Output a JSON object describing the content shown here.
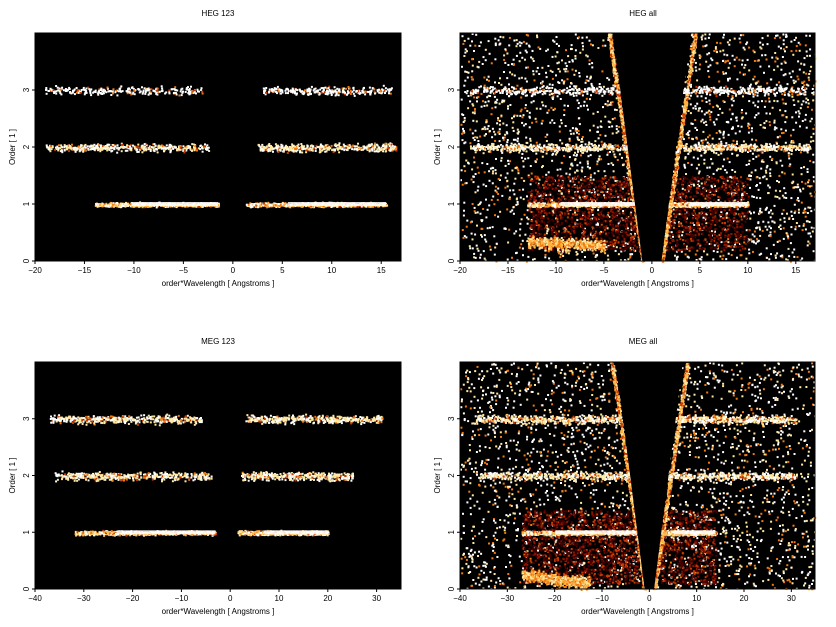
{
  "figure": {
    "background": "#ffffff",
    "panel_bg": "#000000"
  },
  "colormap": [
    "#4a0000",
    "#8a1500",
    "#c83a00",
    "#f07a10",
    "#ffb340",
    "#ffe8a0",
    "#ffffff"
  ],
  "chart_data": [
    {
      "type": "heatmap",
      "title": "HEG 123",
      "xlabel": "order*Wavelength [ Angstroms ]",
      "ylabel": "Order [ 1 ]",
      "xlim": [
        -20,
        17
      ],
      "ylim": [
        0,
        4
      ],
      "xticks": [
        -20,
        -15,
        -10,
        -5,
        0,
        5,
        10,
        15
      ],
      "yticks": [
        0,
        1,
        2,
        3
      ],
      "grid": false,
      "bands": [
        {
          "order": 1,
          "x_ranges": [
            [
              -14,
              -1.5
            ],
            [
              1.3,
              15.5
            ]
          ],
          "peak_x": [
            -9.5,
            -2,
            2,
            7
          ],
          "brightness": "high"
        },
        {
          "order": 2,
          "x_ranges": [
            [
              -19,
              -2.5
            ],
            [
              2.5,
              16.5
            ]
          ],
          "brightness": "medium"
        },
        {
          "order": 3,
          "x_ranges": [
            [
              -19,
              -3
            ],
            [
              3,
              16
            ]
          ],
          "brightness": "low"
        }
      ],
      "background_counts": "none"
    },
    {
      "type": "heatmap",
      "title": "HEG all",
      "xlabel": "order*Wavelength [ Angstroms ]",
      "ylabel": "Order [ 1 ]",
      "xlim": [
        -20,
        17
      ],
      "ylim": [
        0,
        4
      ],
      "xticks": [
        -20,
        -15,
        -10,
        -5,
        0,
        5,
        10,
        15
      ],
      "yticks": [
        0,
        1,
        2,
        3
      ],
      "grid": false,
      "bands": [
        {
          "order": 1,
          "x_ranges": [
            [
              -13,
              -1.5
            ],
            [
              1.3,
              10
            ]
          ],
          "brightness": "high"
        },
        {
          "order": 2,
          "x_ranges": [
            [
              -19,
              -2.5
            ],
            [
              2.5,
              16.5
            ]
          ],
          "brightness": "medium"
        },
        {
          "order": 3,
          "x_ranges": [
            [
              -19,
              -3
            ],
            [
              3,
              16
            ]
          ],
          "brightness": "low"
        }
      ],
      "rect_region": {
        "x": [
          -13,
          10
        ],
        "y": [
          0.2,
          1.5
        ]
      },
      "streaks": [
        {
          "from": [
            -1,
            0
          ],
          "to": [
            -4.5,
            4
          ],
          "note": "left zero-order streak"
        },
        {
          "from": [
            1,
            0
          ],
          "to": [
            4.5,
            4
          ],
          "note": "right zero-order streak"
        }
      ],
      "background_counts": "dense scattered"
    },
    {
      "type": "heatmap",
      "title": "MEG 123",
      "xlabel": "order*Wavelength [ Angstroms ]",
      "ylabel": "Order [ 1 ]",
      "xlim": [
        -40,
        35
      ],
      "ylim": [
        0,
        4
      ],
      "xticks": [
        -40,
        -30,
        -20,
        -10,
        0,
        10,
        20,
        30
      ],
      "yticks": [
        0,
        1,
        2,
        3
      ],
      "grid": false,
      "bands": [
        {
          "order": 1,
          "x_ranges": [
            [
              -32,
              -3
            ],
            [
              1.5,
              20
            ]
          ],
          "peak_x": [
            -10,
            -4,
            3,
            11
          ],
          "brightness": "high"
        },
        {
          "order": 2,
          "x_ranges": [
            [
              -36,
              -4
            ],
            [
              2,
              25
            ]
          ],
          "brightness": "medium"
        },
        {
          "order": 3,
          "x_ranges": [
            [
              -37,
              -6
            ],
            [
              3,
              31
            ]
          ],
          "peak_x": [
            -22,
            13,
            26
          ],
          "brightness": "medium"
        }
      ],
      "background_counts": "none"
    },
    {
      "type": "heatmap",
      "title": "MEG all",
      "xlabel": "order*Wavelength [ Angstroms ]",
      "ylabel": "Order [ 1 ]",
      "xlim": [
        -40,
        35
      ],
      "ylim": [
        0,
        4
      ],
      "xticks": [
        -40,
        -30,
        -20,
        -10,
        0,
        10,
        20,
        30
      ],
      "yticks": [
        0,
        1,
        2,
        3
      ],
      "grid": false,
      "bands": [
        {
          "order": 1,
          "x_ranges": [
            [
              -27,
              -3
            ],
            [
              1.5,
              14
            ]
          ],
          "brightness": "high"
        },
        {
          "order": 2,
          "x_ranges": [
            [
              -36,
              -4
            ],
            [
              2,
              31
            ]
          ],
          "brightness": "medium"
        },
        {
          "order": 3,
          "x_ranges": [
            [
              -37,
              -6
            ],
            [
              3,
              31
            ]
          ],
          "brightness": "medium"
        }
      ],
      "rect_region": {
        "x": [
          -27,
          14
        ],
        "y": [
          0.1,
          1.4
        ]
      },
      "streaks": [
        {
          "from": [
            -1,
            0
          ],
          "to": [
            -8,
            4
          ],
          "note": "left zero-order streak"
        },
        {
          "from": [
            1,
            0
          ],
          "to": [
            8,
            4
          ],
          "note": "right zero-order streak"
        }
      ],
      "background_counts": "dense scattered"
    }
  ]
}
